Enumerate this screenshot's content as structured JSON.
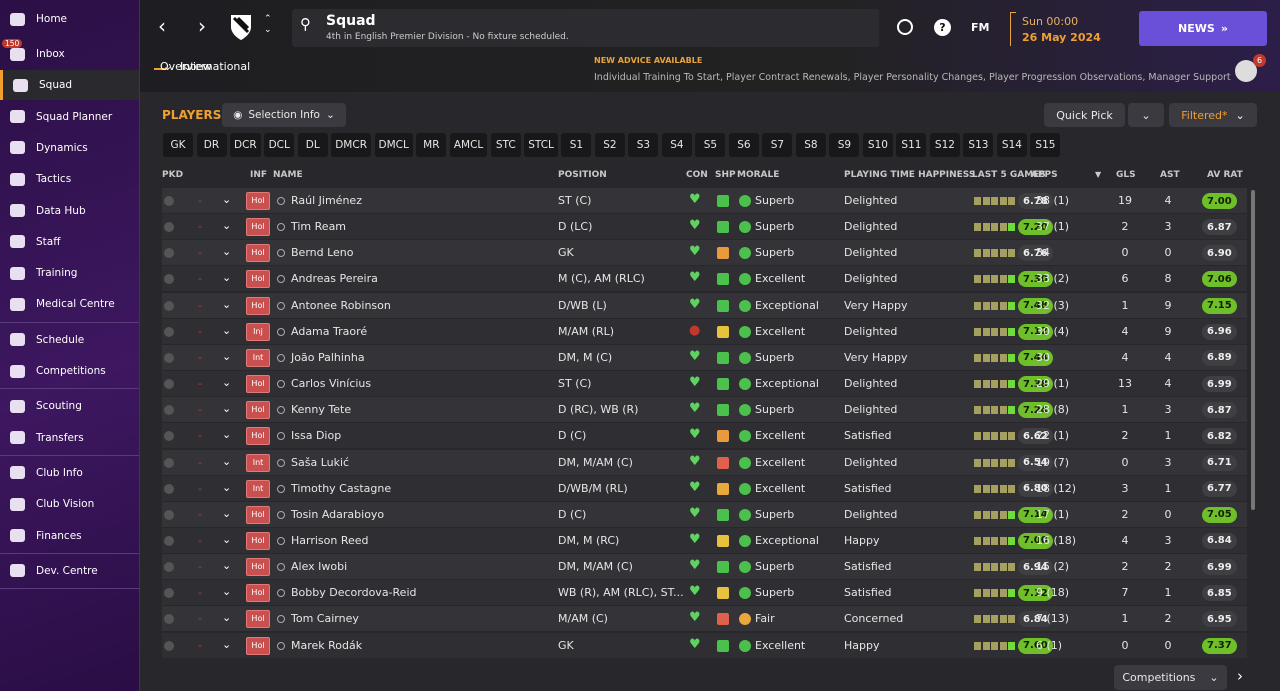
{
  "sidebar": {
    "groups": [
      [
        "Home",
        "Inbox",
        "Squad",
        "Squad Planner",
        "Dynamics",
        "Tactics",
        "Data Hub",
        "Staff",
        "Training",
        "Medical Centre"
      ],
      [
        "Schedule",
        "Competitions"
      ],
      [
        "Scouting",
        "Transfers"
      ],
      [
        "Club Info",
        "Club Vision",
        "Finances"
      ],
      [
        "Dev. Centre"
      ]
    ],
    "inbox_badge": "150"
  },
  "header": {
    "title": "Squad",
    "subtitle": "4th in English Premier Division - No fixture scheduled.",
    "tabs": [
      "Overview",
      "International"
    ],
    "fm": "FM",
    "time": "Sun 00:00",
    "date": "26 May 2024",
    "news": "NEWS",
    "advice_title": "NEW ADVICE AVAILABLE",
    "advice_text": "Individual Training To Start, Player Contract Renewals, Player Personality Changes, Player Progression Observations, Manager Support",
    "avatar_badge": "6"
  },
  "toolbar": {
    "heading": "PLAYERS",
    "selection": "Selection Info",
    "quick_pick": "Quick Pick",
    "filter": "Filtered*"
  },
  "positions": [
    "GK",
    "DR",
    "DCR",
    "DCL",
    "DL",
    "DMCR",
    "DMCL",
    "MR",
    "AMCL",
    "STC",
    "STCL",
    "S1",
    "S2",
    "S3",
    "S4",
    "S5",
    "S6",
    "S7",
    "S8",
    "S9",
    "S10",
    "S11",
    "S12",
    "S13",
    "S14",
    "S15"
  ],
  "table": {
    "columns": [
      "PKD",
      "INF",
      "NAME",
      "POSITION",
      "CON",
      "SHP",
      "MORALE",
      "PLAYING TIME HAPPINESS",
      "LAST 5 GAMES",
      "APPS",
      "GLS",
      "AST",
      "AV RAT"
    ],
    "rows": [
      {
        "inf": "Hol",
        "name": "Raúl Jiménez",
        "position": "ST (C)",
        "con_color": "#5fd35f",
        "ship_color": "#4cc04c",
        "morale_color": "#4cc04c",
        "morale": "Superb",
        "happiness": "Delighted",
        "last5": "6.78",
        "apps": "38 (1)",
        "gls": 19,
        "ast": 4,
        "avrat": "7.00"
      },
      {
        "inf": "Hol",
        "name": "Tim Ream",
        "position": "D (LC)",
        "con_color": "#5fd35f",
        "ship_color": "#4cc04c",
        "morale_color": "#4cc04c",
        "morale": "Superb",
        "happiness": "Delighted",
        "last5": "7.20",
        "apps": "37 (1)",
        "gls": 2,
        "ast": 3,
        "avrat": "6.87"
      },
      {
        "inf": "Hol",
        "name": "Bernd Leno",
        "position": "GK",
        "con_color": "#5fd35f",
        "ship_color": "#e89a3c",
        "morale_color": "#4cc04c",
        "morale": "Superb",
        "happiness": "Delighted",
        "last5": "6.76",
        "apps": "34",
        "gls": 0,
        "ast": 0,
        "avrat": "6.90"
      },
      {
        "inf": "Hol",
        "name": "Andreas Pereira",
        "position": "M (C), AM (RLC)",
        "con_color": "#5fd35f",
        "ship_color": "#4cc04c",
        "morale_color": "#4cc04c",
        "morale": "Excellent",
        "happiness": "Delighted",
        "last5": "7.30",
        "apps": "33 (2)",
        "gls": 6,
        "ast": 8,
        "avrat": "7.06"
      },
      {
        "inf": "Hol",
        "name": "Antonee Robinson",
        "position": "D/WB (L)",
        "con_color": "#5fd35f",
        "ship_color": "#4cc04c",
        "morale_color": "#4cc04c",
        "morale": "Exceptional",
        "happiness": "Very Happy",
        "last5": "7.48",
        "apps": "32 (3)",
        "gls": 1,
        "ast": 9,
        "avrat": "7.15"
      },
      {
        "inf": "Inj",
        "name": "Adama Traoré",
        "position": "M/AM (RL)",
        "con_color": "#c0392b",
        "ship_color": "#e8c23c",
        "morale_color": "#4cc04c",
        "morale": "Excellent",
        "happiness": "Delighted",
        "last5": "7.12",
        "apps": "30 (4)",
        "gls": 4,
        "ast": 9,
        "avrat": "6.96"
      },
      {
        "inf": "Int",
        "name": "João Palhinha",
        "position": "DM, M (C)",
        "con_color": "#5fd35f",
        "ship_color": "#4cc04c",
        "morale_color": "#4cc04c",
        "morale": "Superb",
        "happiness": "Very Happy",
        "last5": "7.44",
        "apps": "30",
        "gls": 4,
        "ast": 4,
        "avrat": "6.89"
      },
      {
        "inf": "Hol",
        "name": "Carlos Vinícius",
        "position": "ST (C)",
        "con_color": "#5fd35f",
        "ship_color": "#4cc04c",
        "morale_color": "#4cc04c",
        "morale": "Exceptional",
        "happiness": "Delighted",
        "last5": "7.38",
        "apps": "29 (1)",
        "gls": 13,
        "ast": 4,
        "avrat": "6.99"
      },
      {
        "inf": "Hol",
        "name": "Kenny Tete",
        "position": "D (RC), WB (R)",
        "con_color": "#5fd35f",
        "ship_color": "#4cc04c",
        "morale_color": "#4cc04c",
        "morale": "Superb",
        "happiness": "Delighted",
        "last5": "7.24",
        "apps": "28 (8)",
        "gls": 1,
        "ast": 3,
        "avrat": "6.87"
      },
      {
        "inf": "Hol",
        "name": "Issa Diop",
        "position": "D (C)",
        "con_color": "#5fd35f",
        "ship_color": "#e89a3c",
        "morale_color": "#4cc04c",
        "morale": "Excellent",
        "happiness": "Satisfied",
        "last5": "6.62",
        "apps": "22 (1)",
        "gls": 2,
        "ast": 1,
        "avrat": "6.82"
      },
      {
        "inf": "Int",
        "name": "Saša Lukić",
        "position": "DM, M/AM (C)",
        "con_color": "#5fd35f",
        "ship_color": "#e0604c",
        "morale_color": "#4cc04c",
        "morale": "Excellent",
        "happiness": "Delighted",
        "last5": "6.54",
        "apps": "19 (7)",
        "gls": 0,
        "ast": 3,
        "avrat": "6.71"
      },
      {
        "inf": "Int",
        "name": "Timothy Castagne",
        "position": "D/WB/M (RL)",
        "con_color": "#5fd35f",
        "ship_color": "#e8a83c",
        "morale_color": "#4cc04c",
        "morale": "Excellent",
        "happiness": "Satisfied",
        "last5": "6.80",
        "apps": "18 (12)",
        "gls": 3,
        "ast": 1,
        "avrat": "6.77"
      },
      {
        "inf": "Hol",
        "name": "Tosin Adarabioyo",
        "position": "D (C)",
        "con_color": "#5fd35f",
        "ship_color": "#4cc04c",
        "morale_color": "#4cc04c",
        "morale": "Superb",
        "happiness": "Delighted",
        "last5": "7.14",
        "apps": "17 (1)",
        "gls": 2,
        "ast": 0,
        "avrat": "7.05"
      },
      {
        "inf": "Hol",
        "name": "Harrison Reed",
        "position": "DM, M (RC)",
        "con_color": "#5fd35f",
        "ship_color": "#e8c23c",
        "morale_color": "#4cc04c",
        "morale": "Exceptional",
        "happiness": "Happy",
        "last5": "7.00",
        "apps": "16 (18)",
        "gls": 4,
        "ast": 3,
        "avrat": "6.84"
      },
      {
        "inf": "Hol",
        "name": "Alex Iwobi",
        "position": "DM, M/AM (C)",
        "con_color": "#5fd35f",
        "ship_color": "#4cc04c",
        "morale_color": "#4cc04c",
        "morale": "Superb",
        "happiness": "Satisfied",
        "last5": "6.94",
        "apps": "15 (2)",
        "gls": 2,
        "ast": 2,
        "avrat": "6.99"
      },
      {
        "inf": "Hol",
        "name": "Bobby Decordova-Reid",
        "position": "WB (R), AM (RLC), ST...",
        "con_color": "#5fd35f",
        "ship_color": "#e8c23c",
        "morale_color": "#4cc04c",
        "morale": "Superb",
        "happiness": "Satisfied",
        "last5": "7.12",
        "apps": "9 (18)",
        "gls": 7,
        "ast": 1,
        "avrat": "6.85"
      },
      {
        "inf": "Hol",
        "name": "Tom Cairney",
        "position": "M/AM (C)",
        "con_color": "#5fd35f",
        "ship_color": "#e0604c",
        "morale_color": "#e8a83c",
        "morale": "Fair",
        "happiness": "Concerned",
        "last5": "6.84",
        "apps": "7 (13)",
        "gls": 1,
        "ast": 2,
        "avrat": "6.95"
      },
      {
        "inf": "Hol",
        "name": "Marek Rodák",
        "position": "GK",
        "con_color": "#5fd35f",
        "ship_color": "#4cc04c",
        "morale_color": "#4cc04c",
        "morale": "Excellent",
        "happiness": "Happy",
        "last5": "7.60",
        "apps": "6 (1)",
        "gls": 0,
        "ast": 0,
        "avrat": "7.37"
      }
    ]
  },
  "footer": {
    "competitions": "Competitions"
  }
}
